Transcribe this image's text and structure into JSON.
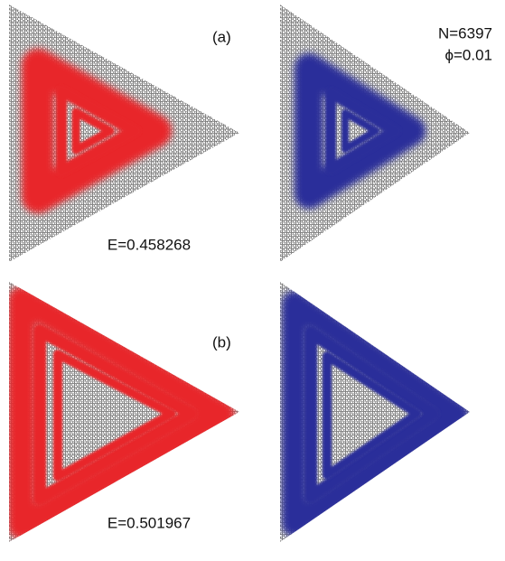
{
  "panel_a": {
    "label": "(a)",
    "energy": "E=0.458268",
    "size": "N=6397",
    "flux": "ϕ=0.01"
  },
  "panel_b": {
    "label": "(b)",
    "energy": "E=0.501967"
  }
}
